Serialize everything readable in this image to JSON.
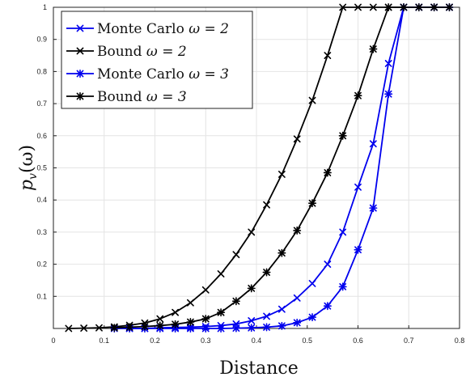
{
  "chart_data": {
    "type": "line",
    "xlabel": "Distance",
    "ylabel": "p_v(ω)",
    "ylabel_base": "p",
    "ylabel_sub": "v",
    "ylabel_arg": "(ω)",
    "xlim": [
      0,
      0.8
    ],
    "ylim": [
      0,
      1
    ],
    "x_ticks": [
      "0",
      "0.1",
      "0.2",
      "0.3",
      "0.4",
      "0.5",
      "0.6",
      "0.7",
      "0.8"
    ],
    "y_ticks": [
      "0.1",
      "0.2",
      "0.3",
      "0.4",
      "0.5",
      "0.6",
      "0.7",
      "0.8",
      "0.9",
      "1"
    ],
    "grid": true,
    "legend_position": "top-left",
    "series": [
      {
        "name": "Monte Carlo ω = 2",
        "legend_text": "Monte Carlo",
        "legend_omega": "ω = 2",
        "color": "#0000ee",
        "marker": "x",
        "x": [
          0.15,
          0.18,
          0.21,
          0.24,
          0.27,
          0.3,
          0.33,
          0.36,
          0.39,
          0.42,
          0.45,
          0.48,
          0.51,
          0.54,
          0.57,
          0.6,
          0.63,
          0.66,
          0.69,
          0.72,
          0.75,
          0.78
        ],
        "y": [
          0.0,
          0.0,
          0.002,
          0.003,
          0.004,
          0.006,
          0.009,
          0.014,
          0.024,
          0.038,
          0.06,
          0.095,
          0.14,
          0.2,
          0.3,
          0.44,
          0.575,
          0.825,
          1.0,
          1.0,
          1.0,
          1.0
        ]
      },
      {
        "name": "Bound ω = 2",
        "legend_text": "Bound",
        "legend_omega": "ω = 2",
        "color": "#000000",
        "marker": "x",
        "x": [
          0.03,
          0.06,
          0.09,
          0.12,
          0.15,
          0.18,
          0.21,
          0.24,
          0.27,
          0.3,
          0.33,
          0.36,
          0.39,
          0.42,
          0.45,
          0.48,
          0.51,
          0.54,
          0.57,
          0.6,
          0.63,
          0.66,
          0.69,
          0.72,
          0.75,
          0.78
        ],
        "y": [
          0.0,
          0.001,
          0.002,
          0.005,
          0.01,
          0.017,
          0.03,
          0.05,
          0.08,
          0.12,
          0.17,
          0.23,
          0.3,
          0.385,
          0.48,
          0.59,
          0.71,
          0.85,
          1.0,
          1.0,
          1.0,
          1.0,
          1.0,
          1.0,
          1.0,
          1.0
        ]
      },
      {
        "name": "Monte Carlo ω = 3",
        "legend_text": "Monte Carlo",
        "legend_omega": "ω = 3",
        "color": "#0000ee",
        "marker": "star",
        "x": [
          0.12,
          0.15,
          0.18,
          0.21,
          0.24,
          0.27,
          0.3,
          0.33,
          0.36,
          0.39,
          0.42,
          0.45,
          0.48,
          0.51,
          0.54,
          0.57,
          0.6,
          0.63,
          0.66,
          0.69,
          0.72,
          0.75,
          0.78
        ],
        "y": [
          0.0,
          0.0,
          0.0,
          0.0,
          0.0,
          0.0,
          0.0,
          0.0,
          0.001,
          0.002,
          0.004,
          0.008,
          0.018,
          0.035,
          0.07,
          0.13,
          0.245,
          0.375,
          0.73,
          1.0,
          1.0,
          1.0,
          1.0
        ]
      },
      {
        "name": "Bound ω = 3",
        "legend_text": "Bound",
        "legend_omega": "ω = 3",
        "color": "#000000",
        "marker": "star",
        "x": [
          0.12,
          0.15,
          0.18,
          0.21,
          0.24,
          0.27,
          0.3,
          0.33,
          0.36,
          0.39,
          0.42,
          0.45,
          0.48,
          0.51,
          0.54,
          0.57,
          0.6,
          0.63,
          0.66,
          0.69,
          0.72,
          0.75,
          0.78
        ],
        "y": [
          0.002,
          0.004,
          0.006,
          0.009,
          0.013,
          0.02,
          0.03,
          0.05,
          0.085,
          0.125,
          0.175,
          0.235,
          0.305,
          0.39,
          0.485,
          0.6,
          0.725,
          0.87,
          1.0,
          1.0,
          1.0,
          1.0,
          1.0
        ]
      }
    ]
  }
}
